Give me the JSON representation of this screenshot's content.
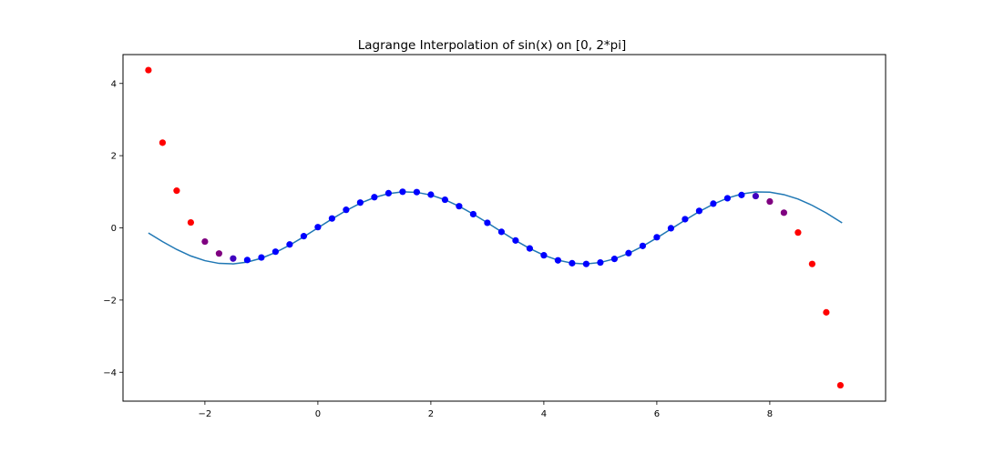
{
  "chart_data": {
    "type": "scatter",
    "title": "Lagrange Interpolation of sin(x) on [0, 2*pi]",
    "xlabel": "",
    "ylabel": "",
    "xlim": [
      -3.45,
      10.05
    ],
    "ylim": [
      -4.8,
      4.8
    ],
    "x_ticks": [
      -2,
      0,
      2,
      4,
      6,
      8
    ],
    "y_ticks": [
      -4,
      -2,
      0,
      2,
      4
    ],
    "grid": false,
    "legend": "none",
    "series": [
      {
        "kind": "line",
        "color": "#1f77b4",
        "x": [
          -3.0,
          -2.75,
          -2.5,
          -2.25,
          -2.0,
          -1.75,
          -1.5,
          -1.25,
          -1.0,
          -0.75,
          -0.5,
          -0.25,
          0.0,
          0.25,
          0.5,
          0.75,
          1.0,
          1.25,
          1.5,
          1.75,
          2.0,
          2.25,
          2.5,
          2.75,
          3.0,
          3.25,
          3.5,
          3.75,
          4.0,
          4.25,
          4.5,
          4.75,
          5.0,
          5.25,
          5.5,
          5.75,
          6.0,
          6.25,
          6.5,
          6.75,
          7.0,
          7.25,
          7.5,
          7.75,
          8.0,
          8.25,
          8.5,
          8.75,
          9.0,
          9.28
        ],
        "y": [
          -0.141,
          -0.382,
          -0.598,
          -0.778,
          -0.909,
          -0.984,
          -0.997,
          -0.949,
          -0.841,
          -0.682,
          -0.479,
          -0.247,
          0.0,
          0.247,
          0.479,
          0.682,
          0.841,
          0.949,
          0.997,
          0.984,
          0.909,
          0.778,
          0.598,
          0.382,
          0.141,
          -0.108,
          -0.351,
          -0.572,
          -0.757,
          -0.895,
          -0.978,
          -0.999,
          -0.959,
          -0.859,
          -0.706,
          -0.508,
          -0.279,
          -0.033,
          0.215,
          0.451,
          0.657,
          0.823,
          0.938,
          0.995,
          0.989,
          0.921,
          0.798,
          0.624,
          0.412,
          0.138
        ]
      },
      {
        "kind": "points",
        "color": "#ff0000",
        "x": [
          -3.0,
          -2.75,
          -2.5,
          -2.25,
          8.5,
          8.75,
          9.0,
          9.25
        ],
        "y": [
          4.37,
          2.36,
          1.03,
          0.15,
          -0.13,
          -1.0,
          -2.34,
          -4.36
        ]
      },
      {
        "kind": "points",
        "color": "#7f0080",
        "x": [
          -2.0,
          -1.75,
          8.0,
          8.25
        ],
        "y": [
          -0.38,
          -0.71,
          0.73,
          0.42
        ]
      },
      {
        "kind": "points",
        "color": "#3f00bf",
        "x": [
          -1.5,
          7.75
        ],
        "y": [
          -0.85,
          0.88
        ]
      },
      {
        "kind": "points",
        "color": "#0000ff",
        "x": [
          -1.25,
          -1.0,
          -0.75,
          -0.5,
          -0.25,
          0.0,
          0.25,
          0.5,
          0.75,
          1.0,
          1.25,
          1.5,
          1.75,
          2.0,
          2.25,
          2.5,
          2.75,
          3.0,
          3.25,
          3.5,
          3.75,
          4.0,
          4.25,
          4.5,
          4.75,
          5.0,
          5.25,
          5.5,
          5.75,
          6.0,
          6.25,
          6.5,
          6.75,
          7.0,
          7.25,
          7.5
        ],
        "y": [
          -0.89,
          -0.82,
          -0.66,
          -0.46,
          -0.23,
          0.02,
          0.26,
          0.5,
          0.7,
          0.85,
          0.96,
          1.0,
          0.99,
          0.92,
          0.78,
          0.6,
          0.38,
          0.14,
          -0.11,
          -0.35,
          -0.57,
          -0.76,
          -0.9,
          -0.98,
          -1.0,
          -0.96,
          -0.86,
          -0.7,
          -0.5,
          -0.26,
          -0.01,
          0.24,
          0.47,
          0.67,
          0.82,
          0.91
        ]
      }
    ]
  }
}
